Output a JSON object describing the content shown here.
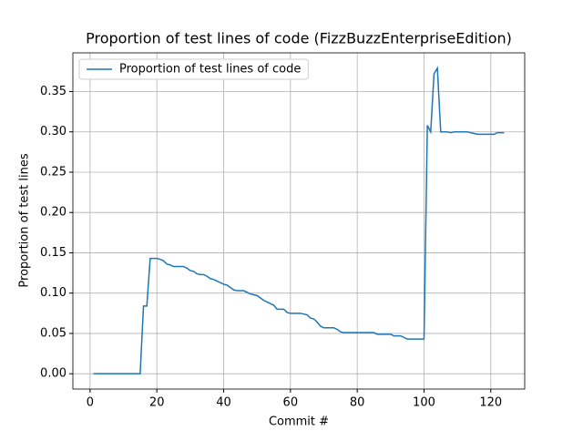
{
  "chart_data": {
    "type": "line",
    "title": "Proportion of test lines of code (FizzBuzzEnterpriseEdition)",
    "x_label": "Commit #",
    "y_label": "Proportion of test lines",
    "x": [
      1,
      2,
      3,
      4,
      5,
      6,
      7,
      8,
      9,
      10,
      11,
      12,
      13,
      14,
      15,
      16,
      17,
      18,
      19,
      20,
      21,
      22,
      23,
      24,
      25,
      26,
      27,
      28,
      29,
      30,
      31,
      32,
      33,
      34,
      35,
      36,
      37,
      38,
      39,
      40,
      41,
      42,
      43,
      44,
      45,
      46,
      47,
      48,
      49,
      50,
      51,
      52,
      53,
      54,
      55,
      56,
      57,
      58,
      59,
      60,
      61,
      62,
      63,
      64,
      65,
      66,
      67,
      68,
      69,
      70,
      71,
      72,
      73,
      74,
      75,
      76,
      77,
      78,
      79,
      80,
      81,
      82,
      83,
      84,
      85,
      86,
      87,
      88,
      89,
      90,
      91,
      92,
      93,
      94,
      95,
      96,
      97,
      98,
      99,
      100,
      101,
      102,
      103,
      104,
      105,
      106,
      107,
      108,
      109,
      110,
      111,
      112,
      113,
      114,
      115,
      116,
      117,
      118,
      119,
      120,
      121,
      122,
      123,
      124
    ],
    "series": [
      {
        "name": "Proportion of test lines of code",
        "color": "#1f77b4",
        "values": [
          0,
          0,
          0,
          0,
          0,
          0,
          0,
          0,
          0,
          0,
          0,
          0,
          0,
          0,
          0,
          0.084,
          0.084,
          0.143,
          0.143,
          0.143,
          0.142,
          0.14,
          0.136,
          0.135,
          0.133,
          0.133,
          0.133,
          0.133,
          0.131,
          0.128,
          0.127,
          0.124,
          0.123,
          0.123,
          0.121,
          0.118,
          0.117,
          0.115,
          0.113,
          0.111,
          0.11,
          0.107,
          0.104,
          0.103,
          0.103,
          0.103,
          0.101,
          0.099,
          0.098,
          0.097,
          0.094,
          0.091,
          0.089,
          0.087,
          0.085,
          0.08,
          0.08,
          0.08,
          0.076,
          0.075,
          0.075,
          0.075,
          0.075,
          0.074,
          0.073,
          0.069,
          0.068,
          0.064,
          0.059,
          0.057,
          0.057,
          0.057,
          0.057,
          0.055,
          0.052,
          0.051,
          0.051,
          0.051,
          0.051,
          0.051,
          0.051,
          0.051,
          0.051,
          0.051,
          0.051,
          0.049,
          0.049,
          0.049,
          0.049,
          0.049,
          0.047,
          0.047,
          0.047,
          0.045,
          0.043,
          0.043,
          0.043,
          0.043,
          0.043,
          0.043,
          0.308,
          0.3,
          0.372,
          0.379,
          0.3,
          0.3,
          0.3,
          0.299,
          0.3,
          0.3,
          0.3,
          0.3,
          0.3,
          0.299,
          0.298,
          0.297,
          0.297,
          0.297,
          0.297,
          0.297,
          0.297,
          0.299,
          0.299,
          0.299
        ]
      }
    ],
    "xlim": [
      -5.15,
      130.15
    ],
    "ylim": [
      -0.019,
      0.398
    ],
    "xticks": [
      0,
      20,
      40,
      60,
      80,
      100,
      120
    ],
    "yticks": [
      {
        "value": 0,
        "label": "0.00"
      },
      {
        "value": 0.05,
        "label": "0.05"
      },
      {
        "value": 0.1,
        "label": "0.10"
      },
      {
        "value": 0.15,
        "label": "0.15"
      },
      {
        "value": 0.2,
        "label": "0.20"
      },
      {
        "value": 0.25,
        "label": "0.25"
      },
      {
        "value": 0.3,
        "label": "0.30"
      },
      {
        "value": 0.35,
        "label": "0.35"
      }
    ],
    "grid": true,
    "legend": "upper left"
  }
}
